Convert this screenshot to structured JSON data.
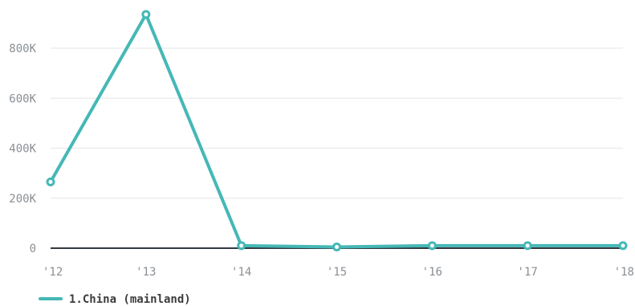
{
  "chart_data": {
    "type": "line",
    "x": [
      "'12",
      "'13",
      "'14",
      "'15",
      "'16",
      "'17",
      "'18"
    ],
    "series": [
      {
        "name": "1.China (mainland)",
        "color": "#45b8b6",
        "values": [
          265000,
          935000,
          10000,
          5000,
          10000,
          10000,
          10000
        ]
      }
    ],
    "y_ticks": [
      0,
      200000,
      400000,
      600000,
      800000
    ],
    "y_tick_labels": [
      "0",
      "200K",
      "400K",
      "600K",
      "800K"
    ],
    "ylim": [
      0,
      950000
    ],
    "grid": true,
    "legend_position": "bottom-left",
    "colors": {
      "grid": "#e6e6e6",
      "zero_line": "#333a40",
      "tick_text": "#8a8f94",
      "legend_text": "#3c3c3c"
    }
  }
}
